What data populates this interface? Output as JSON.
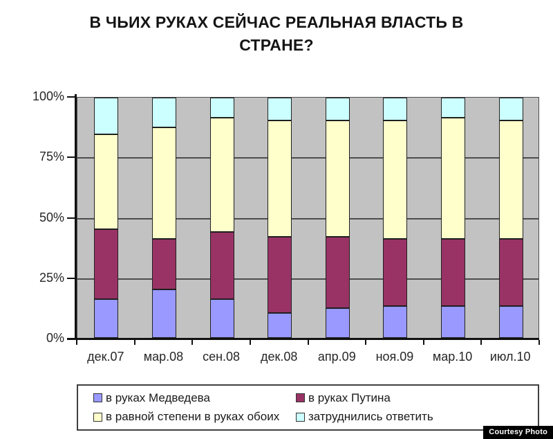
{
  "title": "В ЧЬИХ РУКАХ СЕЙЧАС РЕАЛЬНАЯ ВЛАСТЬ В СТРАНЕ?",
  "watermark": "Courtesy Photo",
  "chart_data": {
    "type": "bar",
    "variant": "stacked-100-percent",
    "title": "В ЧЬИХ РУКАХ СЕЙЧАС РЕАЛЬНАЯ ВЛАСТЬ В СТРАНЕ?",
    "categories": [
      "дек.07",
      "мар.08",
      "сен.08",
      "дек.08",
      "апр.09",
      "ноя.09",
      "мар.10",
      "июл.10"
    ],
    "series": [
      {
        "name": "в руках Медведева",
        "color": "#9999FF",
        "values": [
          16,
          20,
          16,
          10,
          12,
          13,
          13,
          13
        ]
      },
      {
        "name": "в руках Путина",
        "color": "#993366",
        "values": [
          29,
          21,
          28,
          32,
          30,
          28,
          28,
          28
        ]
      },
      {
        "name": "в равной степени в руках обоих",
        "color": "#FFFFCC",
        "values": [
          40,
          47,
          48,
          49,
          49,
          50,
          51,
          50
        ]
      },
      {
        "name": "затруднились ответить",
        "color": "#CCFFFF",
        "values": [
          15,
          12,
          8,
          9,
          9,
          9,
          8,
          9
        ]
      }
    ],
    "xlabel": "",
    "ylabel": "",
    "ylim": [
      0,
      100
    ],
    "y_ticks": [
      "0%",
      "25%",
      "50%",
      "75%",
      "100%"
    ],
    "y_tick_values": [
      0,
      25,
      50,
      75,
      100
    ],
    "grid": true,
    "gridline_values": [
      25,
      50,
      75
    ],
    "legend_position": "bottom",
    "plot_background": "#C2C2C2",
    "bar_border_color": "#1F1F1F"
  }
}
